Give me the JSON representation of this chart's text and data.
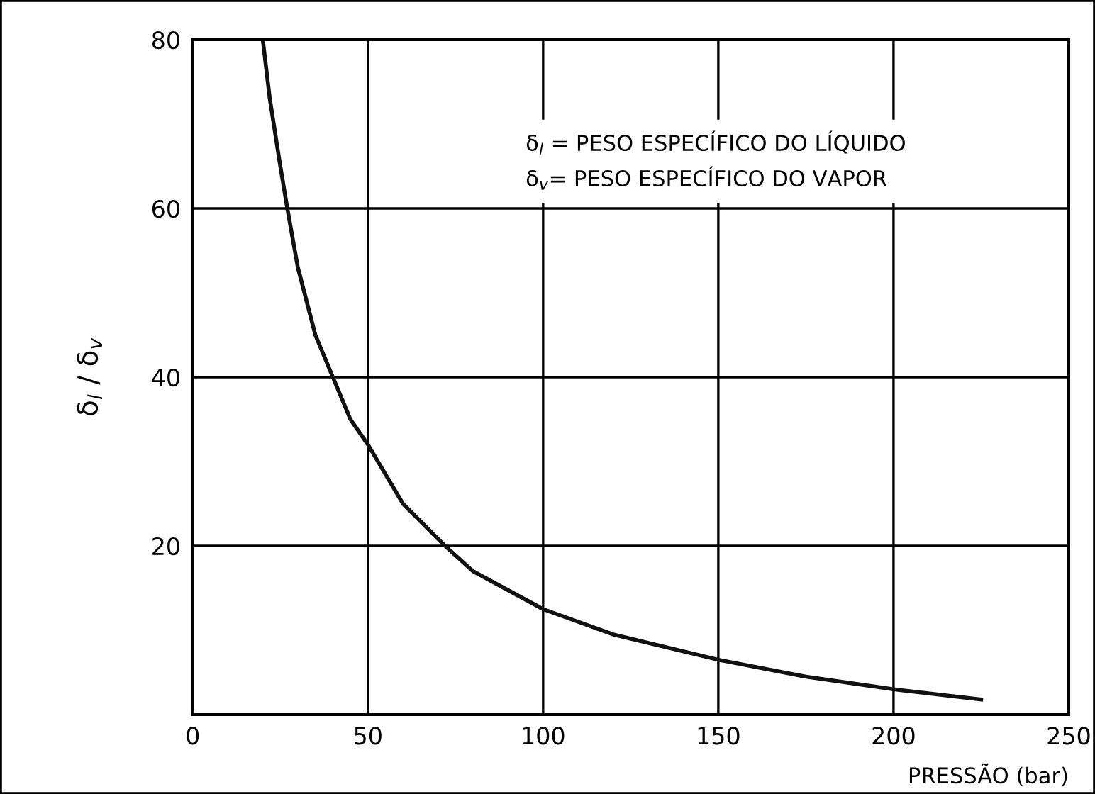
{
  "chart_data": {
    "type": "line",
    "xlabel": "PRESSÃO (bar)",
    "ylabel": "δ$_{l}$ / δ$_{v}$",
    "annotations": [
      "δ$_{l}$ = PESO ESPECÍFICO DO LÍQUIDO",
      "δ$_{v}$= PESO ESPECÍFICO DO VAPOR"
    ],
    "series": [
      {
        "color": "#111111",
        "x": [
          20,
          22,
          25,
          27,
          30,
          35,
          40,
          45,
          50,
          60,
          72,
          80,
          100,
          120,
          150,
          175,
          200,
          225
        ],
        "values": [
          80,
          73,
          65,
          60,
          53,
          45,
          40,
          35,
          32,
          25,
          20,
          17,
          12.5,
          9.5,
          6.5,
          4.5,
          3,
          1.8
        ]
      }
    ],
    "xlim": [
      0,
      250
    ],
    "xticks": [
      0,
      50,
      100,
      150,
      200,
      250
    ],
    "ylim": [
      0,
      80
    ],
    "yticks": [
      20,
      40,
      60,
      80
    ],
    "grid": true,
    "marker": "none",
    "line_style": "solid"
  }
}
